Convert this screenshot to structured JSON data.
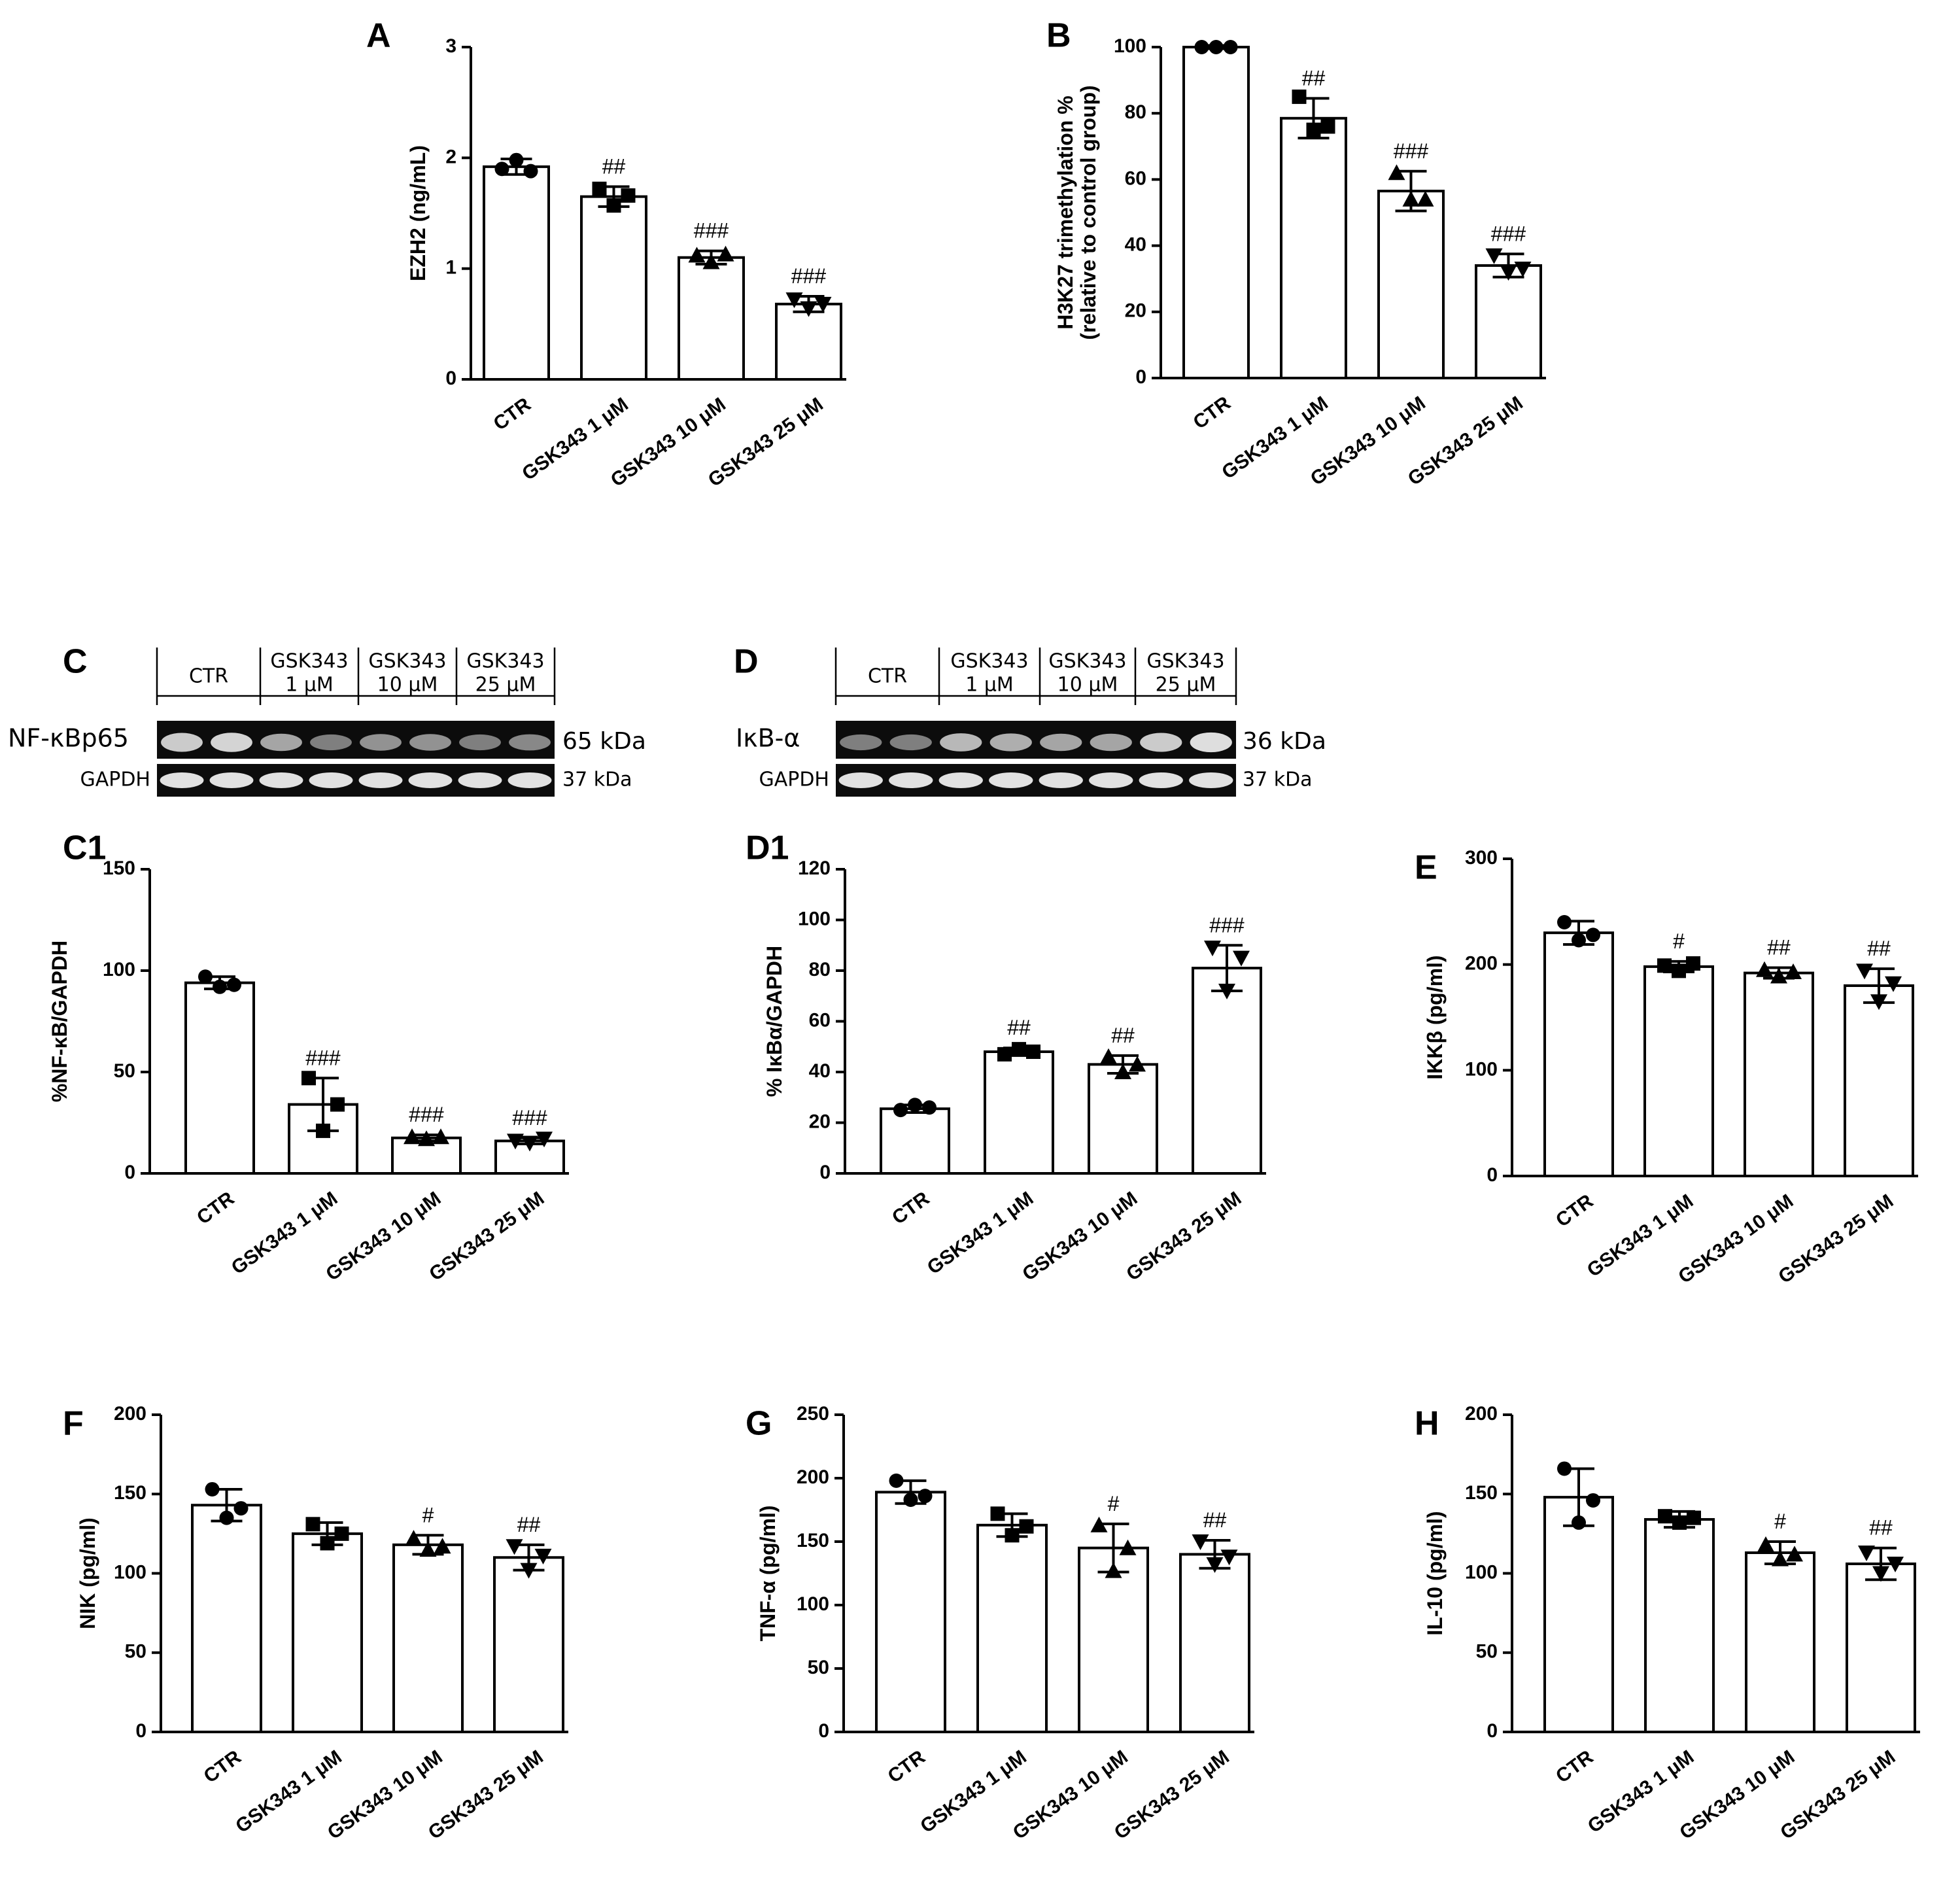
{
  "chart_data": [
    {
      "id": "A",
      "type": "bar",
      "panel": "A",
      "categories": [
        "CTR",
        "GSK343 1 μM",
        "GSK343 10 μM",
        "GSK343 25 μM"
      ],
      "values": [
        1.92,
        1.65,
        1.1,
        0.68
      ],
      "errors": [
        0.07,
        0.09,
        0.06,
        0.07
      ],
      "points": [
        [
          1.9,
          1.98,
          1.88
        ],
        [
          1.72,
          1.57,
          1.66
        ],
        [
          1.12,
          1.06,
          1.13
        ],
        [
          0.72,
          0.64,
          0.68
        ]
      ],
      "markers": [
        "circle",
        "square",
        "triangle",
        "triangle-down"
      ],
      "significance": [
        "",
        "##",
        "###",
        "###"
      ],
      "ylabel": "EZH2 (ng/mL)",
      "ylim": [
        0,
        3
      ],
      "yticks": [
        0,
        1,
        2,
        3
      ]
    },
    {
      "id": "B",
      "type": "bar",
      "panel": "B",
      "categories": [
        "CTR",
        "GSK343 1 μM",
        "GSK343 10 μM",
        "GSK343 25 μM"
      ],
      "values": [
        100,
        78.5,
        56.5,
        34
      ],
      "errors": [
        0.5,
        6,
        6,
        3.5
      ],
      "points": [
        [
          100,
          100,
          100
        ],
        [
          85,
          75,
          76
        ],
        [
          62,
          54,
          54
        ],
        [
          37,
          32,
          33
        ]
      ],
      "markers": [
        "circle",
        "square",
        "triangle",
        "triangle-down"
      ],
      "significance": [
        "",
        "##",
        "###",
        "###"
      ],
      "ylabel": "H3K27 trimethylation %",
      "ylabel2": "(relative to control group)",
      "ylim": [
        0,
        100
      ],
      "yticks": [
        0,
        20,
        40,
        60,
        80,
        100
      ]
    },
    {
      "id": "C1",
      "type": "bar",
      "panel": "C1",
      "categories": [
        "CTR",
        "GSK343 1 μM",
        "GSK343 10 μM",
        "GSK343 25 μM"
      ],
      "values": [
        94,
        34,
        17.5,
        16
      ],
      "errors": [
        3,
        13,
        1.5,
        1.5
      ],
      "points": [
        [
          97,
          92,
          93
        ],
        [
          47,
          21,
          34
        ],
        [
          18,
          17,
          18
        ],
        [
          16,
          15,
          17
        ]
      ],
      "markers": [
        "circle",
        "square",
        "triangle",
        "triangle-down"
      ],
      "significance": [
        "",
        "###",
        "###",
        "###"
      ],
      "ylabel": "%NF-κB/GAPDH",
      "ylim": [
        0,
        150
      ],
      "yticks": [
        0,
        50,
        100,
        150
      ]
    },
    {
      "id": "D1",
      "type": "bar",
      "panel": "D1",
      "categories": [
        "CTR",
        "GSK343 1 μM",
        "GSK343 10 μM",
        "GSK343 25 μM"
      ],
      "values": [
        25.5,
        48,
        43,
        81
      ],
      "errors": [
        1.5,
        1.5,
        3.5,
        9
      ],
      "points": [
        [
          25,
          27,
          26
        ],
        [
          47,
          49,
          48
        ],
        [
          46,
          40,
          43
        ],
        [
          89,
          72,
          85
        ]
      ],
      "markers": [
        "circle",
        "square",
        "triangle",
        "triangle-down"
      ],
      "significance": [
        "",
        "##",
        "##",
        "###"
      ],
      "ylabel": "% IκBα/GAPDH",
      "ylim": [
        0,
        120
      ],
      "yticks": [
        0,
        20,
        40,
        60,
        80,
        100,
        120
      ]
    },
    {
      "id": "E",
      "type": "bar",
      "panel": "E",
      "categories": [
        "CTR",
        "GSK343 1 μM",
        "GSK343 10 μM",
        "GSK343 25 μM"
      ],
      "values": [
        230,
        198,
        192,
        180
      ],
      "errors": [
        11,
        5,
        5,
        16
      ],
      "points": [
        [
          240,
          223,
          228
        ],
        [
          199,
          194,
          201
        ],
        [
          195,
          189,
          193
        ],
        [
          194,
          165,
          182
        ]
      ],
      "markers": [
        "circle",
        "square",
        "triangle",
        "triangle-down"
      ],
      "significance": [
        "",
        "#",
        "##",
        "##"
      ],
      "ylabel": "IKKβ (pg/ml)",
      "ylim": [
        0,
        300
      ],
      "yticks": [
        0,
        100,
        200,
        300
      ]
    },
    {
      "id": "F",
      "type": "bar",
      "panel": "F",
      "categories": [
        "CTR",
        "GSK343 1 μM",
        "GSK343 10 μM",
        "GSK343 25 μM"
      ],
      "values": [
        143,
        125,
        118,
        110
      ],
      "errors": [
        10,
        7,
        6,
        8
      ],
      "points": [
        [
          153,
          135,
          141
        ],
        [
          131,
          119,
          125
        ],
        [
          122,
          115,
          117
        ],
        [
          117,
          102,
          111
        ]
      ],
      "markers": [
        "circle",
        "square",
        "triangle",
        "triangle-down"
      ],
      "significance": [
        "",
        "",
        "#",
        "##"
      ],
      "ylabel": "NIK (pg/ml)",
      "ylim": [
        0,
        200
      ],
      "yticks": [
        0,
        50,
        100,
        150,
        200
      ]
    },
    {
      "id": "G",
      "type": "bar",
      "panel": "G",
      "categories": [
        "CTR",
        "GSK343 1 μM",
        "GSK343 10 μM",
        "GSK343 25 μM"
      ],
      "values": [
        189,
        163,
        145,
        140
      ],
      "errors": [
        9,
        9,
        19,
        11
      ],
      "points": [
        [
          198,
          183,
          186
        ],
        [
          172,
          155,
          162
        ],
        [
          163,
          127,
          145
        ],
        [
          150,
          132,
          138
        ]
      ],
      "markers": [
        "circle",
        "square",
        "triangle",
        "triangle-down"
      ],
      "significance": [
        "",
        "",
        "#",
        "##"
      ],
      "ylabel": "TNF-α (pg/ml)",
      "ylim": [
        0,
        250
      ],
      "yticks": [
        0,
        50,
        100,
        150,
        200,
        250
      ]
    },
    {
      "id": "H",
      "type": "bar",
      "panel": "H",
      "categories": [
        "CTR",
        "GSK343 1 μM",
        "GSK343 10 μM",
        "GSK343 25 μM"
      ],
      "values": [
        148,
        134,
        113,
        106
      ],
      "errors": [
        18,
        5,
        7,
        10
      ],
      "points": [
        [
          166,
          132,
          146
        ],
        [
          136,
          132,
          135
        ],
        [
          118,
          109,
          112
        ],
        [
          113,
          100,
          106
        ]
      ],
      "markers": [
        "circle",
        "square",
        "triangle",
        "triangle-down"
      ],
      "significance": [
        "",
        "",
        "#",
        "##"
      ],
      "ylabel": "IL-10 (pg/ml)",
      "ylim": [
        0,
        200
      ],
      "yticks": [
        0,
        50,
        100,
        150,
        200
      ]
    }
  ],
  "blots": {
    "C": {
      "panel": "C",
      "headers": [
        [
          "CTR"
        ],
        [
          "GSK343",
          "1 μM"
        ],
        [
          "GSK343",
          "10 μM"
        ],
        [
          "GSK343",
          "25 μM"
        ]
      ],
      "protein_label": "NF-κBp65",
      "protein_kda": "65 kDa",
      "gapdh_label": "GAPDH",
      "gapdh_kda": "37 kDa"
    },
    "D": {
      "panel": "D",
      "headers": [
        [
          "CTR"
        ],
        [
          "GSK343",
          "1 μM"
        ],
        [
          "GSK343",
          "10 μM"
        ],
        [
          "GSK343",
          "25 μM"
        ]
      ],
      "protein_label": "IκB-α",
      "protein_kda": "36 kDa",
      "gapdh_label": "GAPDH",
      "gapdh_kda": "37 kDa"
    }
  }
}
